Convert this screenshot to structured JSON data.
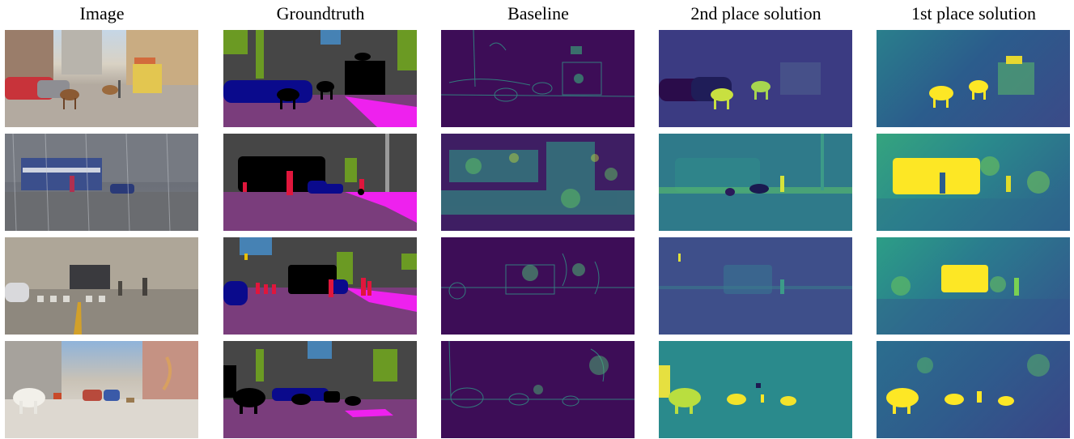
{
  "columns": [
    "Image",
    "Groundtruth",
    "Baseline",
    "2nd place solution",
    "1st place solution"
  ],
  "colors": {
    "gt_road": "#7a3d7c",
    "gt_sidewalk": "#ee21ee",
    "gt_vehicle": "#0a0a8c",
    "gt_anomaly": "#000000",
    "gt_person": "#e0163c",
    "gt_vegetation": "#6b9a23",
    "gt_sky": "#4682b4",
    "gt_other": "#464646",
    "heat_low": "#440154",
    "heat_mid": "#21918c",
    "heat_high": "#fde725"
  }
}
